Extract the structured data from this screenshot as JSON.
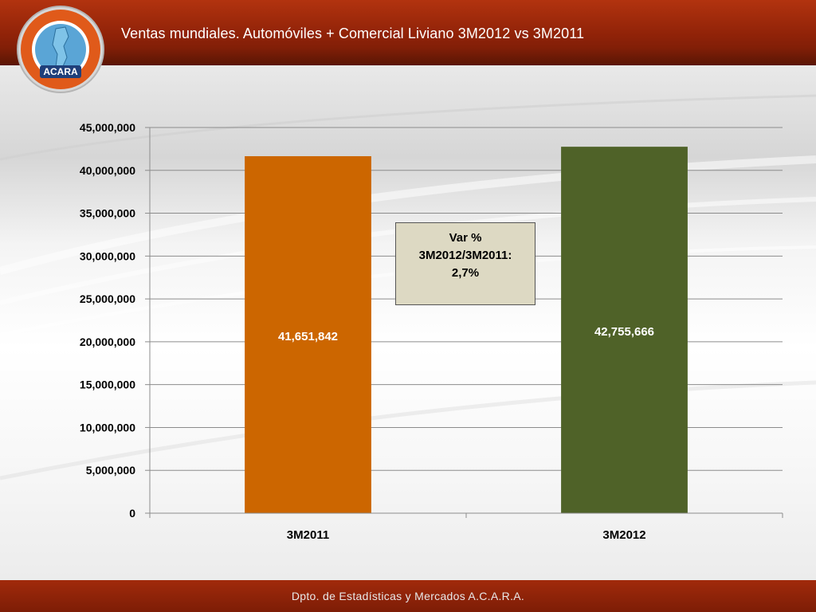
{
  "slide": {
    "title": "Ventas mundiales. Automóviles + Comercial Liviano 3M2012 vs 3M2011",
    "footer": "Dpto. de Estadísticas y Mercados A.C.A.R.A.",
    "logo_text": "ACARA"
  },
  "annotation": {
    "line1": "Var %",
    "line2": "3M2012/3M2011:",
    "line3": "2,7%"
  },
  "colors": {
    "header": "#9b2709",
    "bar_3M2011": "#cc6600",
    "bar_3M2012": "#4f6228"
  },
  "chart_data": {
    "type": "bar",
    "categories": [
      "3M2011",
      "3M2012"
    ],
    "values": [
      41651842,
      42755666
    ],
    "data_labels": [
      "41,651,842",
      "42,755,666"
    ],
    "ylim": [
      0,
      45000000
    ],
    "yticks": [
      0,
      5000000,
      10000000,
      15000000,
      20000000,
      25000000,
      30000000,
      35000000,
      40000000,
      45000000
    ],
    "ytick_labels": [
      "0",
      "5,000,000",
      "10,000,000",
      "15,000,000",
      "20,000,000",
      "25,000,000",
      "30,000,000",
      "35,000,000",
      "40,000,000",
      "45,000,000"
    ],
    "grid": true,
    "legend": "none",
    "title": "",
    "xlabel": "",
    "ylabel": ""
  }
}
